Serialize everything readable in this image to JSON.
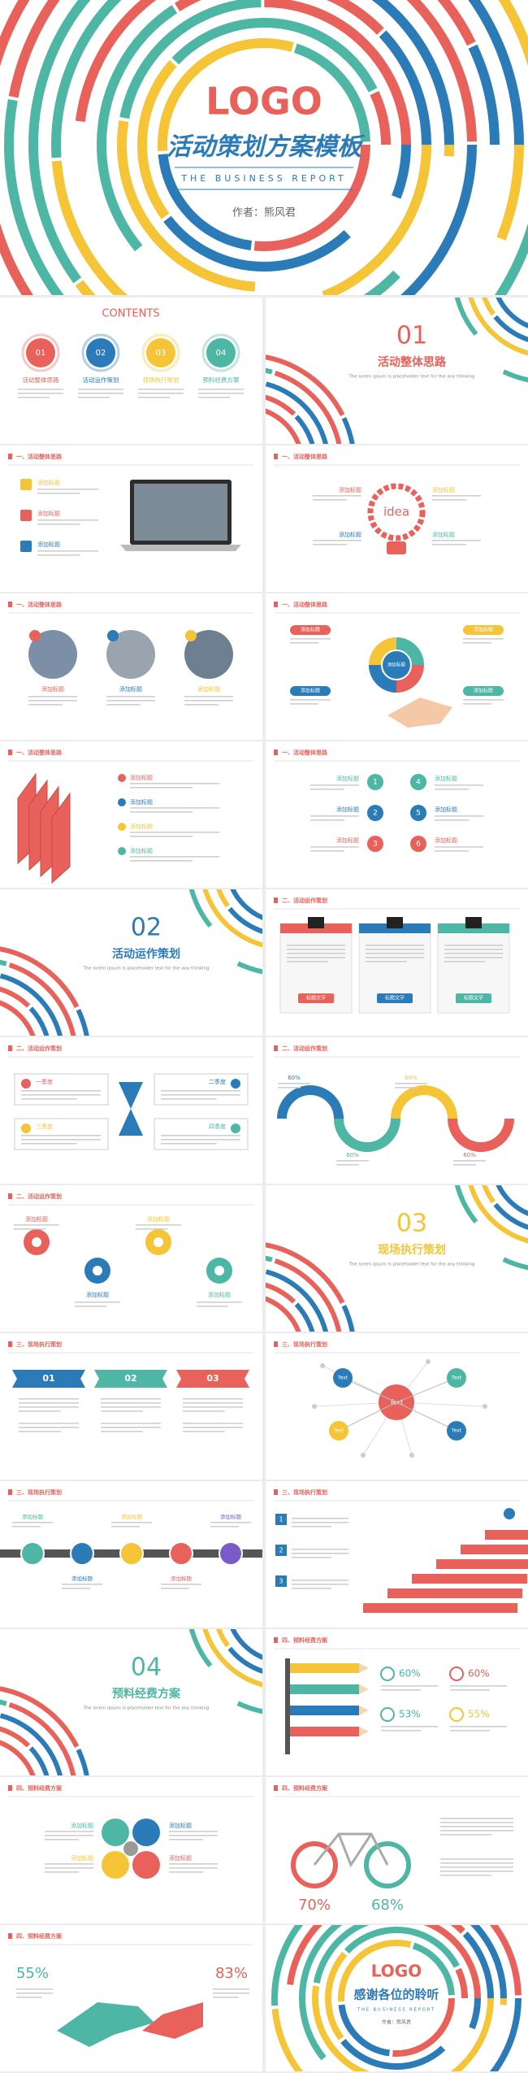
{
  "hero": {
    "logo": "LOGO",
    "title": "活动策划方案模板",
    "subtitle": "THE BUSINESS REPORT",
    "author": "作者：熊风君"
  },
  "slides": [
    {
      "kind": "contents",
      "title": "CONTENTS",
      "items": [
        {
          "num": "01",
          "label": "活动整体思路"
        },
        {
          "num": "02",
          "label": "活动运作策划"
        },
        {
          "num": "03",
          "label": "现场执行策划"
        },
        {
          "num": "04",
          "label": "预料经费方案"
        }
      ]
    },
    {
      "kind": "section",
      "color": "#e8615a",
      "num": "01",
      "title": "活动整体思路",
      "desc": "The lorem ipsum is placeholder text for the any thinking"
    },
    {
      "kind": "laptop",
      "header": "一、活动整体思路",
      "items": [
        "添加标题",
        "添加标题",
        "添加标题"
      ]
    },
    {
      "kind": "idea",
      "header": "一、活动整体思路",
      "center": "idea",
      "items": [
        "添加标题",
        "添加标题",
        "添加标题",
        "添加标题"
      ]
    },
    {
      "kind": "photos",
      "header": "一、活动整体思路",
      "items": [
        "添加标题",
        "添加标题",
        "添加标题"
      ]
    },
    {
      "kind": "gear",
      "header": "一、活动整体思路",
      "center": "添加标题",
      "items": [
        "添加标题",
        "添加标题",
        "添加标题",
        "添加标题"
      ]
    },
    {
      "kind": "bars",
      "header": "一、活动整体思路",
      "items": [
        "添加标题",
        "添加标题",
        "添加标题",
        "添加标题"
      ]
    },
    {
      "kind": "numbered",
      "header": "一、活动整体思路",
      "items": [
        {
          "num": "1",
          "label": "添加标题"
        },
        {
          "num": "2",
          "label": "添加标题"
        },
        {
          "num": "3",
          "label": "添加标题"
        },
        {
          "num": "4",
          "label": "添加标题"
        },
        {
          "num": "5",
          "label": "添加标题"
        },
        {
          "num": "6",
          "label": "添加标题"
        }
      ]
    },
    {
      "kind": "section",
      "color": "#2b7bb9",
      "num": "02",
      "title": "活动运作策划",
      "desc": "The lorem ipsum is placeholder text for the any thinking"
    },
    {
      "kind": "clips",
      "header": "二、活动运作策划",
      "items": [
        "标题文字",
        "标题文字",
        "标题文字"
      ]
    },
    {
      "kind": "hourglass",
      "header": "二、活动运作策划",
      "items": [
        "一季度",
        "二季度",
        "三季度",
        "四季度"
      ]
    },
    {
      "kind": "wave",
      "header": "二、活动运作策划",
      "items": [
        "60%",
        "60%",
        "60%",
        "60%"
      ]
    },
    {
      "kind": "circles",
      "header": "二、活动运作策划",
      "items": [
        "添加标题",
        "添加标题",
        "添加标题",
        "添加标题"
      ]
    },
    {
      "kind": "section",
      "color": "#f5c437",
      "num": "03",
      "title": "现场执行策划",
      "desc": "The lorem ipsum is placeholder text for the any thinking"
    },
    {
      "kind": "banners",
      "header": "三、现场执行策划",
      "items": [
        "01",
        "02",
        "03"
      ]
    },
    {
      "kind": "network",
      "header": "三、现场执行策划",
      "items": [
        "Text",
        "Text",
        "Text",
        "Text",
        "Text"
      ]
    },
    {
      "kind": "timeline",
      "header": "三、现场执行策划",
      "items": [
        "添加标题",
        "添加标题",
        "添加标题",
        "添加标题",
        "添加标题"
      ]
    },
    {
      "kind": "stairs",
      "header": "三、现场执行策划",
      "items": [
        "1",
        "2",
        "3"
      ]
    },
    {
      "kind": "section",
      "color": "#4db6a4",
      "num": "04",
      "title": "预料经费方案",
      "desc": "The lorem ipsum is placeholder text for the any thinking"
    },
    {
      "kind": "pencils",
      "header": "四、预料经费方案",
      "items": [
        "60%",
        "60%",
        "53%",
        "55%"
      ]
    },
    {
      "kind": "icons",
      "header": "四、预料经费方案",
      "items": [
        "添加标题",
        "添加标题",
        "添加标题",
        "添加标题"
      ]
    },
    {
      "kind": "bike",
      "header": "四、预料经费方案",
      "items": [
        "70%",
        "68%"
      ]
    },
    {
      "kind": "hands",
      "header": "四、预料经费方案",
      "items": [
        "55%",
        "83%"
      ]
    },
    {
      "kind": "ending",
      "logo": "LOGO",
      "title": "感谢各位的聆听",
      "subtitle": "THE BUSINESS REPORT",
      "author": "作者：熊风君"
    }
  ]
}
